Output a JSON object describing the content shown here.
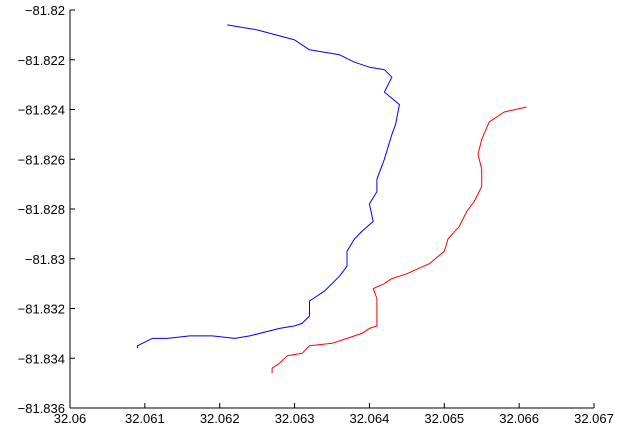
{
  "chart_data": {
    "type": "line",
    "title": "",
    "xlabel": "",
    "ylabel": "",
    "xlim": [
      32.06,
      32.067
    ],
    "ylim": [
      -81.836,
      -81.82
    ],
    "grid": false,
    "legend": "none",
    "xticks": [
      {
        "value": 32.06,
        "label": "32.06"
      },
      {
        "value": 32.061,
        "label": "32.061"
      },
      {
        "value": 32.062,
        "label": "32.062"
      },
      {
        "value": 32.063,
        "label": "32.063"
      },
      {
        "value": 32.064,
        "label": "32.064"
      },
      {
        "value": 32.065,
        "label": "32.065"
      },
      {
        "value": 32.066,
        "label": "32.066"
      },
      {
        "value": 32.067,
        "label": "32.067"
      }
    ],
    "yticks": [
      {
        "value": -81.82,
        "label": "−81.82"
      },
      {
        "value": -81.822,
        "label": "−81.822"
      },
      {
        "value": -81.824,
        "label": "−81.824"
      },
      {
        "value": -81.826,
        "label": "−81.826"
      },
      {
        "value": -81.828,
        "label": "−81.828"
      },
      {
        "value": -81.83,
        "label": "−81.83"
      },
      {
        "value": -81.832,
        "label": "−81.832"
      },
      {
        "value": -81.834,
        "label": "−81.834"
      },
      {
        "value": -81.836,
        "label": "−81.836"
      }
    ],
    "series": [
      {
        "color": "#0000ff",
        "x": [
          32.0621,
          32.0625,
          32.063,
          32.0632,
          32.0636,
          32.0638,
          32.064,
          32.0642,
          32.0643,
          32.06425,
          32.0642,
          32.0644,
          32.06435,
          32.0643,
          32.06425,
          32.0642,
          32.0641,
          32.0641,
          32.064,
          32.06405,
          32.0639,
          32.0638,
          32.0637,
          32.0637,
          32.0636,
          32.0634,
          32.0632,
          32.0632,
          32.0631,
          32.063,
          32.0628,
          32.0624,
          32.0622,
          32.0619,
          32.0616,
          32.0613,
          32.0611,
          32.0609,
          32.0609
        ],
        "y": [
          -81.8206,
          -81.8208,
          -81.8212,
          -81.8216,
          -81.8218,
          -81.8221,
          -81.8223,
          -81.8224,
          -81.8227,
          -81.823,
          -81.8233,
          -81.8238,
          -81.8246,
          -81.825,
          -81.8255,
          -81.826,
          -81.8268,
          -81.8273,
          -81.8278,
          -81.8285,
          -81.8289,
          -81.8292,
          -81.8297,
          -81.8303,
          -81.8307,
          -81.8313,
          -81.8317,
          -81.8323,
          -81.8326,
          -81.8327,
          -81.8328,
          -81.8331,
          -81.8332,
          -81.8331,
          -81.8331,
          -81.8332,
          -81.8332,
          -81.8335,
          -81.8336
        ]
      },
      {
        "color": "#ff0000",
        "x": [
          32.0661,
          32.0658,
          32.0657,
          32.0656,
          32.0655,
          32.06545,
          32.0655,
          32.0655,
          32.0654,
          32.0653,
          32.0652,
          32.06505,
          32.065,
          32.0648,
          32.0645,
          32.0643,
          32.0642,
          32.06405,
          32.0641,
          32.0641,
          32.0641,
          32.064,
          32.064,
          32.0639,
          32.0637,
          32.0635,
          32.0632,
          32.0631,
          32.0629,
          32.0628,
          32.0627,
          32.0627
        ],
        "y": [
          -81.8239,
          -81.8241,
          -81.8243,
          -81.8245,
          -81.8252,
          -81.8258,
          -81.8264,
          -81.8271,
          -81.8277,
          -81.8281,
          -81.8287,
          -81.8292,
          -81.8297,
          -81.8302,
          -81.8306,
          -81.8308,
          -81.831,
          -81.8312,
          -81.8316,
          -81.8322,
          -81.8327,
          -81.8328,
          -81.8328,
          -81.833,
          -81.8332,
          -81.8334,
          -81.8335,
          -81.8338,
          -81.8339,
          -81.8342,
          -81.8344,
          -81.8346
        ]
      }
    ]
  }
}
